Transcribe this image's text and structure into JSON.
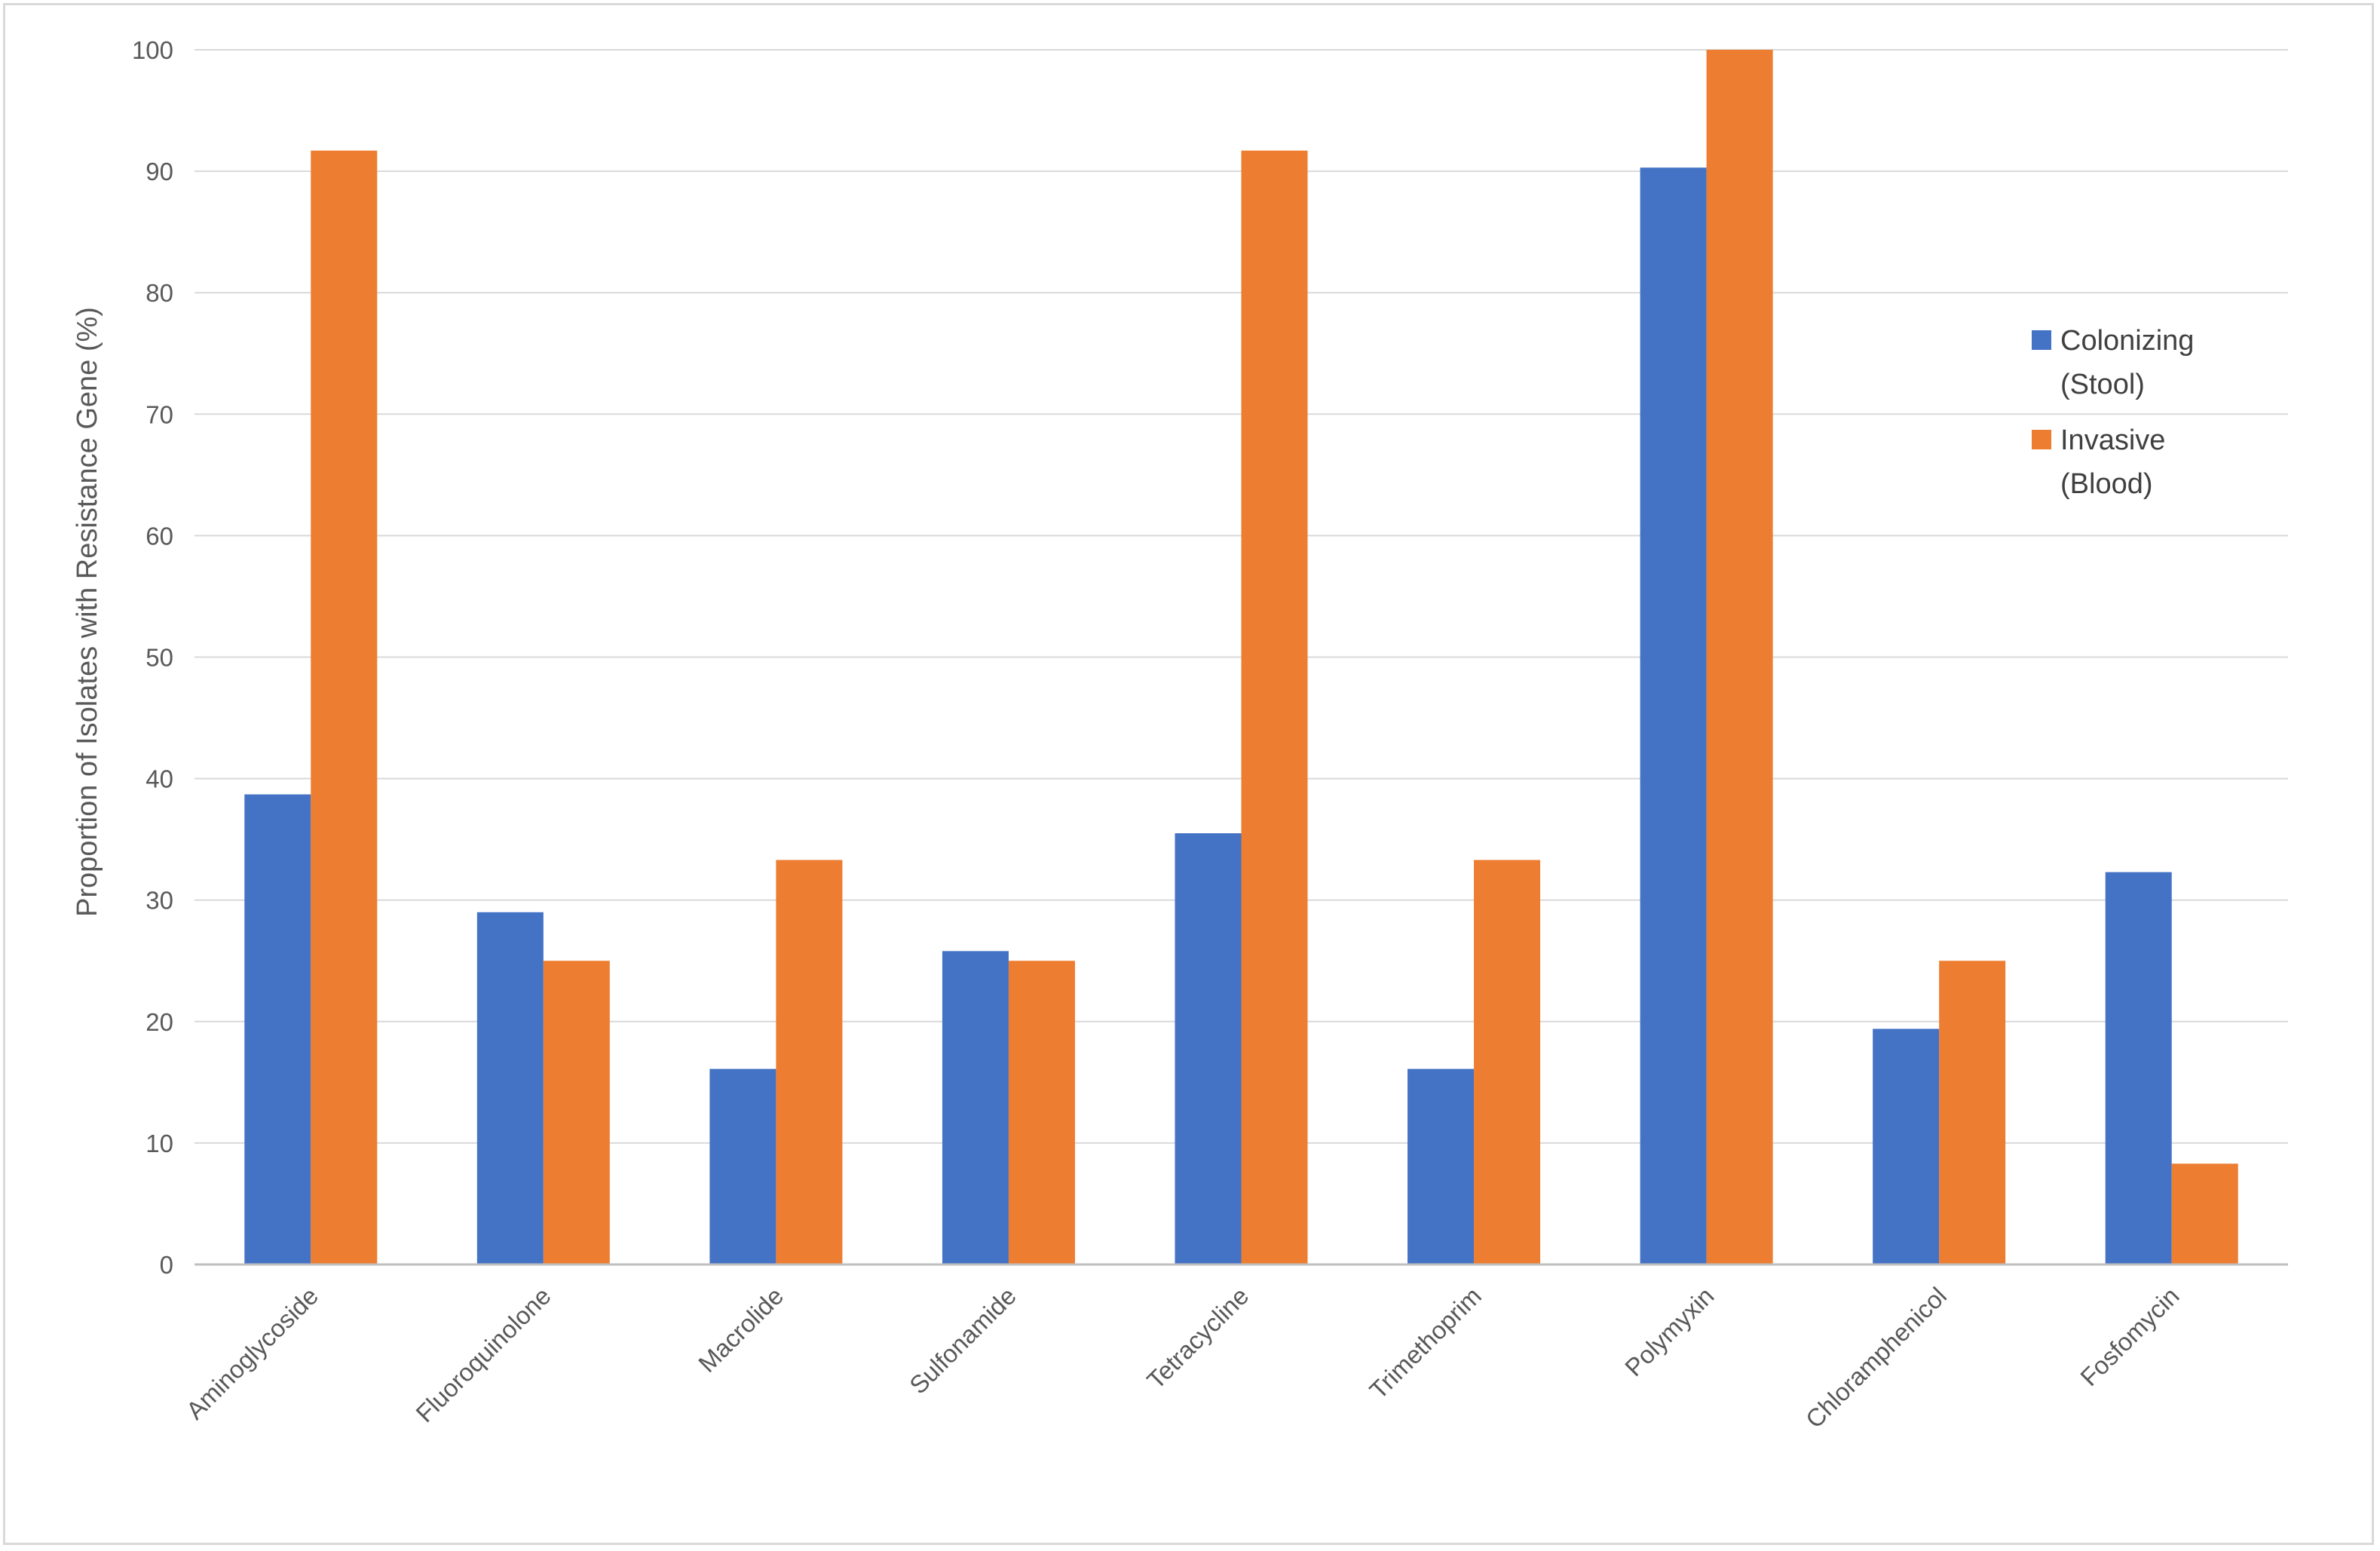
{
  "chart_data": {
    "type": "bar",
    "title": "",
    "ylabel": "Proportion of Isolates with Resistance Gene (%)",
    "xlabel": "",
    "ylim": [
      0,
      100
    ],
    "yticks": [
      0,
      10,
      20,
      30,
      40,
      50,
      60,
      70,
      80,
      90,
      100
    ],
    "grid": true,
    "legend_position": "right",
    "categories": [
      "Aminoglycoside",
      "Fluoroquinolone",
      "Macrolide",
      "Sulfonamide",
      "Tetracycline",
      "Trimethoprim",
      "Polymyxin",
      "Chloramphenicol",
      "Fosfomycin"
    ],
    "series": [
      {
        "name_lines": [
          "Colonizing",
          "(Stool)"
        ],
        "color": "#4472c4",
        "values": [
          38.7,
          29.0,
          16.1,
          25.8,
          35.5,
          16.1,
          90.3,
          19.4,
          32.3
        ]
      },
      {
        "name_lines": [
          "Invasive",
          "(Blood)"
        ],
        "color": "#ed7d31",
        "values": [
          91.7,
          25.0,
          33.3,
          25.0,
          91.7,
          33.3,
          100.0,
          25.0,
          8.3
        ]
      }
    ]
  }
}
